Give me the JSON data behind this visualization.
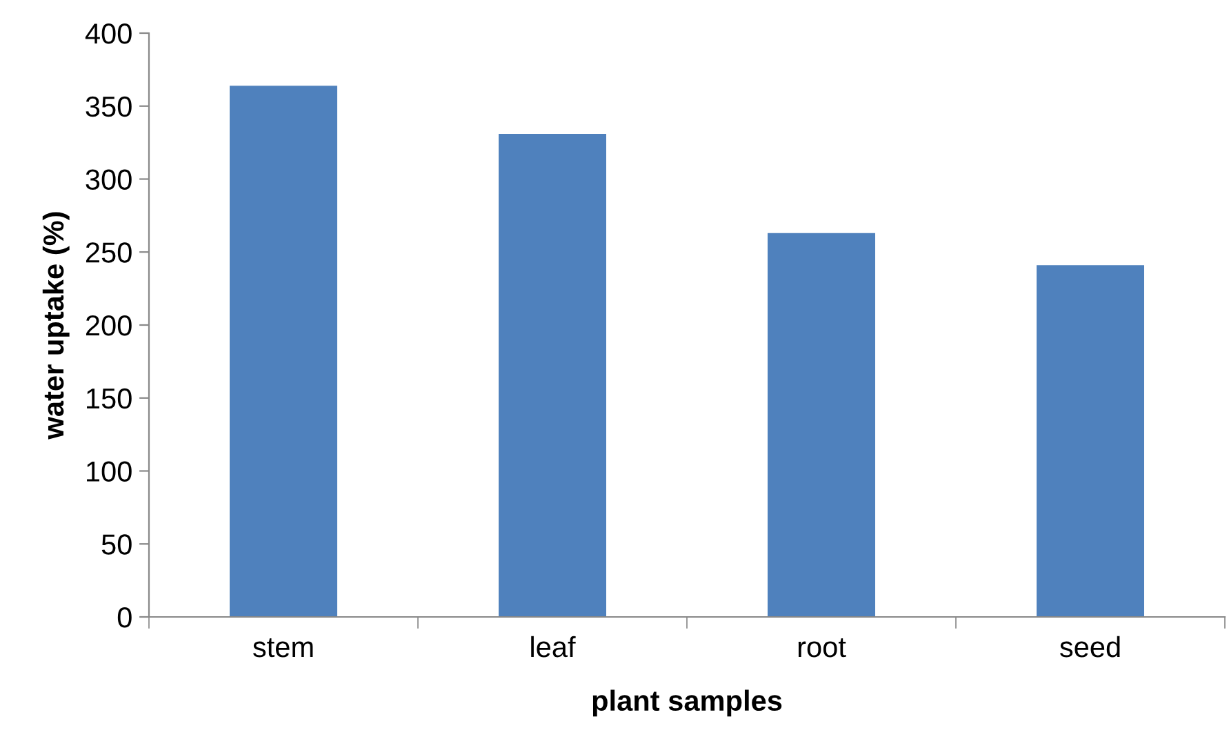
{
  "chart_data": {
    "type": "bar",
    "xlabel": "plant samples",
    "ylabel": "water uptake (%)",
    "categories": [
      "stem",
      "leaf",
      "root",
      "seed"
    ],
    "values": [
      364,
      331,
      263,
      241
    ],
    "color": "#4f81bd",
    "ylim": [
      0,
      400
    ],
    "yticks": [
      0,
      50,
      100,
      150,
      200,
      250,
      300,
      350,
      400
    ],
    "grid": false,
    "legend": false
  }
}
